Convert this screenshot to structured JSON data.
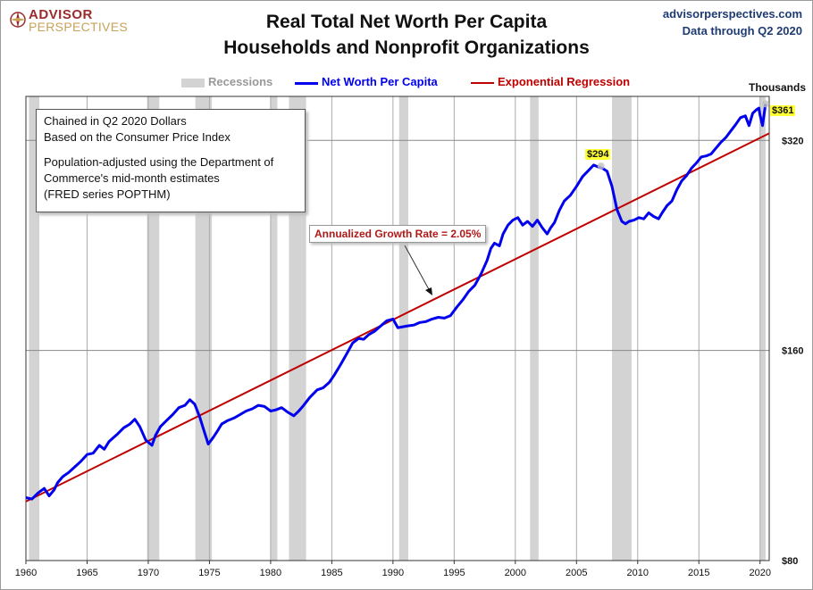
{
  "logo": {
    "line1": "ADVISOR",
    "line2": "PERSPECTIVES"
  },
  "source": {
    "site": "advisorperspectives.com",
    "data_through": "Data through Q2 2020"
  },
  "chart_data": {
    "type": "line",
    "title": "Real Total Net Worth Per Capita",
    "subtitle": "Households and Nonprofit Organizations",
    "y_units_label": "Thousands",
    "y_scale": "log",
    "ylim": [
      80,
      380
    ],
    "xlim": [
      1960,
      2020.75
    ],
    "y_ticks": [
      {
        "value": 80,
        "label": "$80"
      },
      {
        "value": 160,
        "label": "$160"
      },
      {
        "value": 320,
        "label": "$320"
      }
    ],
    "x_ticks": [
      1960,
      1965,
      1970,
      1975,
      1980,
      1985,
      1990,
      1995,
      2000,
      2005,
      2010,
      2015,
      2020
    ],
    "grid": true,
    "legend": {
      "placement": "top",
      "recessions": "Recessions",
      "net_worth": "Net Worth Per Capita",
      "regression": "Exponential Regression"
    },
    "colors": {
      "net_worth": "#0000ee",
      "regression": "#c00000",
      "recession": "#d3d3d3"
    },
    "recessions": [
      [
        1960.25,
        1961.1
      ],
      [
        1969.9,
        1970.9
      ],
      [
        1973.85,
        1975.2
      ],
      [
        1980.0,
        1980.55
      ],
      [
        1981.5,
        1982.9
      ],
      [
        1990.5,
        1991.25
      ],
      [
        2001.2,
        2001.9
      ],
      [
        2007.9,
        2009.5
      ],
      [
        2020.0,
        2020.45
      ]
    ],
    "series": [
      {
        "name": "Net Worth Per Capita",
        "x": [
          1960.0,
          1960.5,
          1961.0,
          1961.5,
          1961.9,
          1962.3,
          1962.6,
          1963.0,
          1963.5,
          1964.0,
          1964.5,
          1965.0,
          1965.5,
          1966.0,
          1966.4,
          1966.8,
          1967.5,
          1968.0,
          1968.5,
          1968.9,
          1969.3,
          1969.8,
          1970.3,
          1970.6,
          1971.0,
          1971.5,
          1972.0,
          1972.5,
          1973.0,
          1973.4,
          1973.8,
          1974.2,
          1974.6,
          1974.9,
          1975.3,
          1975.7,
          1976.0,
          1976.5,
          1977.0,
          1977.5,
          1978.0,
          1978.5,
          1979.0,
          1979.5,
          1980.0,
          1980.4,
          1980.9,
          1981.4,
          1981.9,
          1982.3,
          1982.7,
          1983.2,
          1983.8,
          1984.3,
          1984.8,
          1985.2,
          1985.7,
          1986.2,
          1986.7,
          1987.2,
          1987.6,
          1988.0,
          1988.5,
          1989.0,
          1989.5,
          1990.0,
          1990.4,
          1990.8,
          1991.2,
          1991.7,
          1992.2,
          1992.7,
          1993.2,
          1993.7,
          1994.2,
          1994.7,
          1995.2,
          1995.7,
          1996.2,
          1996.7,
          1997.2,
          1997.7,
          1998.0,
          1998.3,
          1998.7,
          1999.0,
          1999.4,
          1999.8,
          2000.2,
          2000.6,
          2001.0,
          2001.4,
          2001.8,
          2002.2,
          2002.6,
          2002.9,
          2003.2,
          2003.6,
          2004.0,
          2004.5,
          2005.0,
          2005.5,
          2006.0,
          2006.4,
          2006.8,
          2007.1,
          2007.5,
          2007.9,
          2008.3,
          2008.7,
          2009.0,
          2009.3,
          2009.7,
          2010.1,
          2010.5,
          2010.9,
          2011.3,
          2011.7,
          2012.0,
          2012.4,
          2012.8,
          2013.2,
          2013.6,
          2014.0,
          2014.4,
          2014.8,
          2015.2,
          2015.6,
          2016.0,
          2016.4,
          2016.8,
          2017.2,
          2017.6,
          2018.0,
          2018.4,
          2018.8,
          2019.1,
          2019.4,
          2019.7,
          2019.9,
          2020.0,
          2020.2,
          2020.45
        ],
        "y": [
          98.5,
          98.0,
          100.0,
          101.5,
          99.0,
          101.0,
          103.5,
          105.5,
          107.0,
          109.0,
          111.0,
          113.5,
          114.0,
          117.0,
          115.5,
          118.5,
          121.5,
          124.0,
          125.5,
          127.5,
          124.5,
          119.0,
          117.0,
          121.0,
          124.5,
          127.0,
          129.5,
          132.5,
          133.5,
          136.0,
          134.0,
          128.5,
          122.0,
          117.5,
          120.0,
          123.0,
          125.5,
          127.0,
          128.0,
          129.5,
          131.0,
          132.0,
          133.5,
          133.0,
          131.0,
          131.5,
          132.5,
          130.5,
          129.0,
          131.0,
          133.5,
          137.0,
          140.5,
          141.5,
          144.0,
          147.5,
          152.5,
          158.0,
          164.0,
          166.5,
          166.0,
          168.5,
          170.5,
          173.5,
          176.5,
          177.5,
          172.5,
          173.0,
          173.5,
          174.0,
          175.5,
          176.0,
          177.5,
          178.5,
          178.0,
          179.5,
          184.5,
          189.0,
          194.5,
          198.5,
          206.0,
          215.5,
          224.0,
          228.0,
          226.0,
          235.0,
          242.0,
          246.0,
          248.0,
          242.0,
          245.0,
          241.0,
          246.0,
          240.0,
          235.0,
          240.0,
          244.0,
          254.0,
          262.0,
          267.0,
          275.0,
          284.0,
          290.0,
          295.0,
          293.0,
          292.0,
          289.0,
          275.0,
          255.0,
          245.0,
          243.0,
          245.0,
          246.0,
          248.0,
          247.0,
          252.0,
          249.0,
          247.0,
          252.0,
          258.0,
          262.0,
          272.0,
          280.0,
          285.0,
          292.0,
          297.0,
          303.0,
          304.0,
          306.0,
          312.0,
          318.0,
          323.0,
          330.0,
          337.0,
          345.0,
          347.0,
          336.0,
          350.0,
          354.0,
          356.0,
          348.0,
          336.0,
          361.0
        ]
      },
      {
        "name": "Exponential Regression",
        "x": [
          1960.0,
          2020.75
        ],
        "y": [
          97.2,
          327.5
        ]
      }
    ],
    "annotations": {
      "peak_2007": {
        "label": "$294",
        "x": 2007.0,
        "y": 294
      },
      "latest": {
        "label": "$361",
        "x": 2020.45,
        "y": 361
      },
      "growth_rate": "Annualized Growth Rate = 2.05%"
    }
  },
  "notes": {
    "line1": "Chained in Q2 2020  Dollars",
    "line2": "Based on the Consumer Price Index",
    "line3": "Population-adjusted using the Department of",
    "line4": "Commerce's mid-month estimates",
    "line5": "(FRED series POPTHM)"
  }
}
